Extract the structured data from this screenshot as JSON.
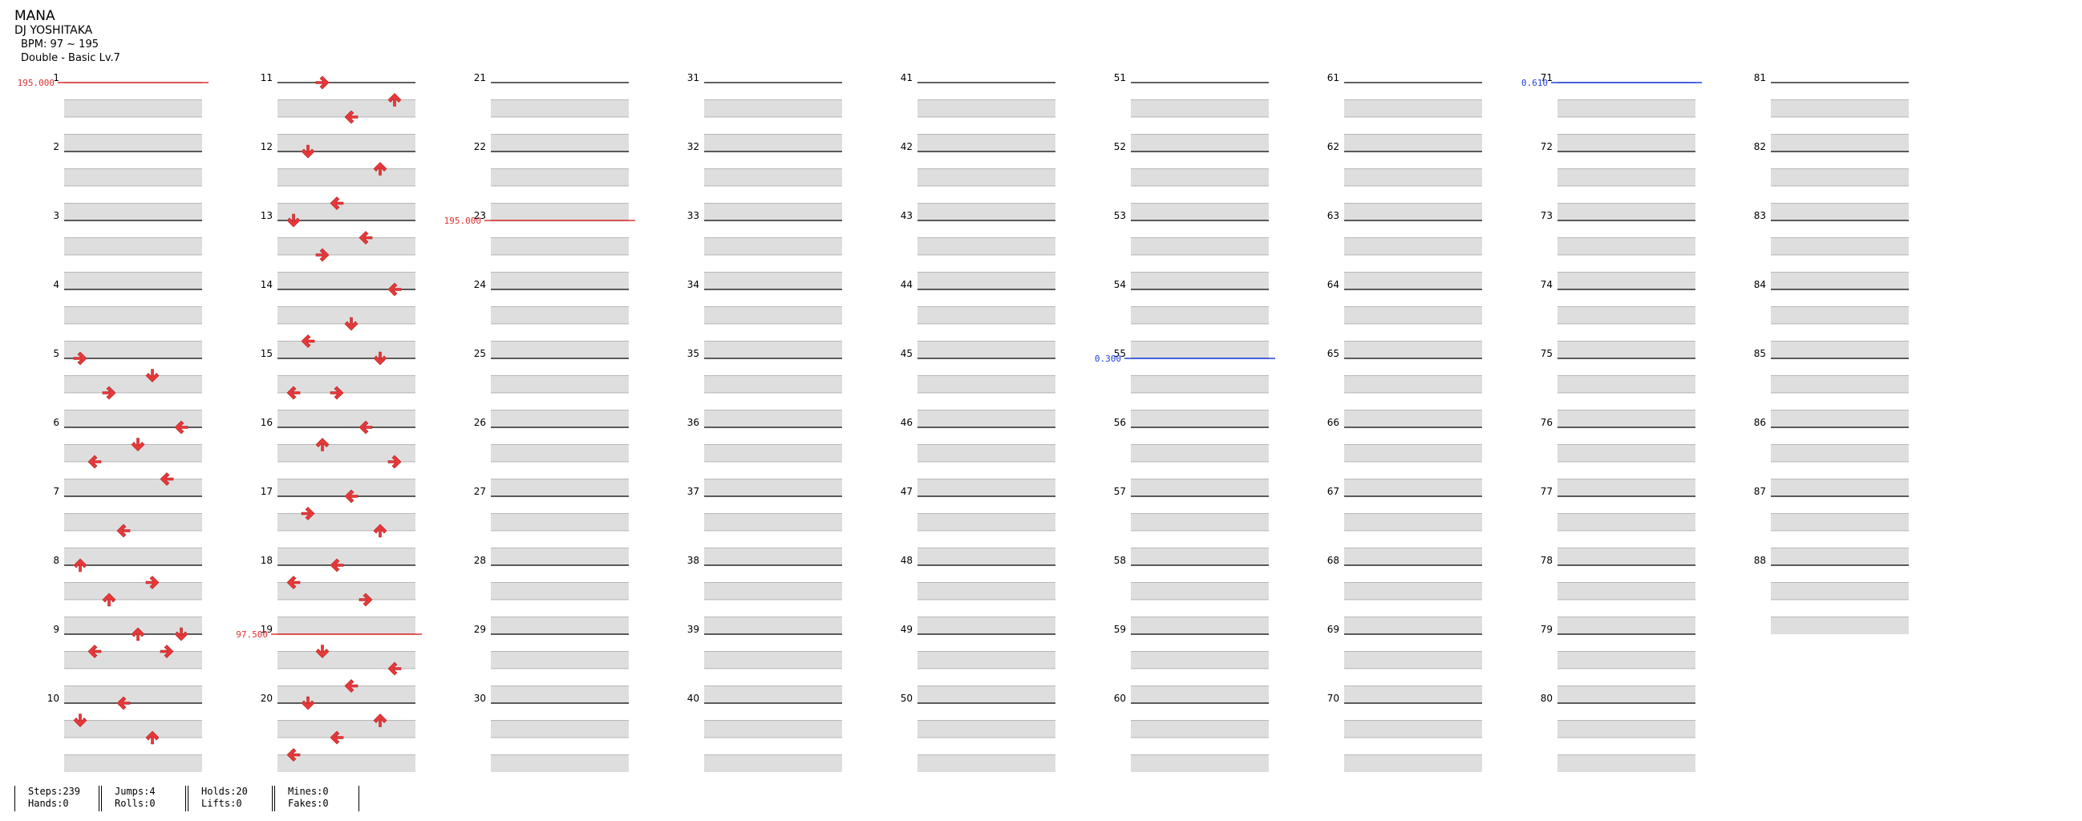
{
  "song": {
    "title": "MANA",
    "artist": "DJ YOSHITAKA",
    "bpm_label": "BPM: 97 ~ 195",
    "chart_type": "Double - Basic Lv.7"
  },
  "measure_numbers": [
    "1",
    "2",
    "3",
    "4",
    "5",
    "6",
    "7",
    "8",
    "9",
    "10",
    "11",
    "12",
    "13",
    "14",
    "15",
    "16",
    "17",
    "18",
    "19",
    "20",
    "21",
    "22",
    "23",
    "24",
    "25",
    "26",
    "27",
    "28",
    "29",
    "30",
    "31",
    "32",
    "33",
    "34",
    "35",
    "36",
    "37",
    "38",
    "39",
    "40",
    "41",
    "42",
    "43",
    "44",
    "45",
    "46",
    "47",
    "48",
    "49",
    "50",
    "51",
    "52",
    "53",
    "54",
    "55",
    "56",
    "57",
    "58",
    "59",
    "60",
    "61",
    "62",
    "63",
    "64",
    "65",
    "66",
    "67",
    "68",
    "69",
    "70",
    "71",
    "72",
    "73",
    "74",
    "75",
    "76",
    "77",
    "78",
    "79",
    "80",
    "81",
    "82",
    "83",
    "84",
    "85",
    "86",
    "87",
    "88"
  ],
  "bpm_markers": [
    {
      "measure": 1,
      "label": "195.000",
      "color": "#e03030"
    },
    {
      "measure": 23,
      "label": "195.000",
      "color": "#e03030"
    },
    {
      "measure": 19,
      "label": "97.500",
      "color": "#e03030"
    },
    {
      "measure": 71,
      "label": "0.610",
      "color": "#2040e0"
    },
    {
      "measure": 55,
      "label": "0.300",
      "color": "#2040e0"
    }
  ],
  "stats": [
    {
      "top": "Steps:239",
      "bottom": "Hands:0"
    },
    {
      "top": "Jumps:4",
      "bottom": "Rolls:0"
    },
    {
      "top": "Holds:20",
      "bottom": "Lifts:0"
    },
    {
      "top": "Mines:0",
      "bottom": "Fakes:0"
    }
  ],
  "colors": {
    "quarter_note": "#e8383a",
    "eighth_note": "#3a5ae8",
    "hold_body": "#8fe08f",
    "stripe": "#dedede",
    "measure_line": "#000000",
    "beat_line": "#808080"
  },
  "arrow_glyphs": {
    "up": "arrow-up-icon",
    "down": "arrow-down-icon",
    "left": "arrow-left-icon",
    "right": "arrow-right-icon"
  },
  "note_steps": [
    {
      "m": 5,
      "b": 0,
      "d": "right"
    },
    {
      "m": 5,
      "b": 1,
      "d": "down"
    },
    {
      "m": 5,
      "b": 2,
      "d": "right"
    },
    {
      "m": 6,
      "b": 0,
      "d": "left"
    },
    {
      "m": 6,
      "b": 1,
      "d": "down"
    },
    {
      "m": 6,
      "b": 2,
      "d": "left"
    },
    {
      "m": 6,
      "b": 3,
      "d": "left"
    },
    {
      "m": 7,
      "b": 2,
      "d": "left"
    },
    {
      "m": 8,
      "b": 0,
      "d": "up"
    },
    {
      "m": 8,
      "b": 1,
      "d": "right"
    },
    {
      "m": 8,
      "b": 2,
      "d": "up"
    },
    {
      "m": 9,
      "b": 0,
      "d": "down"
    },
    {
      "m": 9,
      "b": 0,
      "d": "up"
    },
    {
      "m": 9,
      "b": 1,
      "d": "left"
    },
    {
      "m": 9,
      "b": 1,
      "d": "right"
    },
    {
      "m": 10,
      "b": 0,
      "d": "left"
    },
    {
      "m": 10,
      "b": 1,
      "d": "down"
    },
    {
      "m": 10,
      "b": 2,
      "d": "up"
    },
    {
      "m": 11,
      "b": 0,
      "d": "right"
    },
    {
      "m": 11,
      "b": 1,
      "d": "up"
    },
    {
      "m": 11,
      "b": 2,
      "d": "left"
    },
    {
      "m": 12,
      "b": 0,
      "d": "down"
    },
    {
      "m": 12,
      "b": 1,
      "d": "up"
    },
    {
      "m": 12,
      "b": 3,
      "d": "left"
    },
    {
      "m": 13,
      "b": 0,
      "d": "down"
    },
    {
      "m": 13,
      "b": 1,
      "d": "left"
    },
    {
      "m": 13,
      "b": 2,
      "d": "right"
    },
    {
      "m": 14,
      "b": 0,
      "d": "left"
    },
    {
      "m": 14,
      "b": 2,
      "d": "down"
    },
    {
      "m": 14,
      "b": 3,
      "d": "left"
    },
    {
      "m": 15,
      "b": 0,
      "d": "down"
    },
    {
      "m": 15,
      "b": 2,
      "d": "right"
    },
    {
      "m": 15,
      "b": 2,
      "d": "left"
    },
    {
      "m": 16,
      "b": 0,
      "d": "left"
    },
    {
      "m": 16,
      "b": 1,
      "d": "up"
    },
    {
      "m": 16,
      "b": 2,
      "d": "right"
    },
    {
      "m": 17,
      "b": 0,
      "d": "left"
    },
    {
      "m": 17,
      "b": 1,
      "d": "right"
    },
    {
      "m": 17,
      "b": 2,
      "d": "up"
    },
    {
      "m": 18,
      "b": 0,
      "d": "left"
    },
    {
      "m": 18,
      "b": 1,
      "d": "left"
    },
    {
      "m": 18,
      "b": 2,
      "d": "right"
    },
    {
      "m": 19,
      "b": 1,
      "d": "down"
    },
    {
      "m": 19,
      "b": 2,
      "d": "left"
    },
    {
      "m": 19,
      "b": 3,
      "d": "left"
    },
    {
      "m": 20,
      "b": 0,
      "d": "down"
    },
    {
      "m": 20,
      "b": 1,
      "d": "up"
    },
    {
      "m": 20,
      "b": 2,
      "d": "left"
    },
    {
      "m": 20,
      "b": 3,
      "d": "left"
    }
  ]
}
